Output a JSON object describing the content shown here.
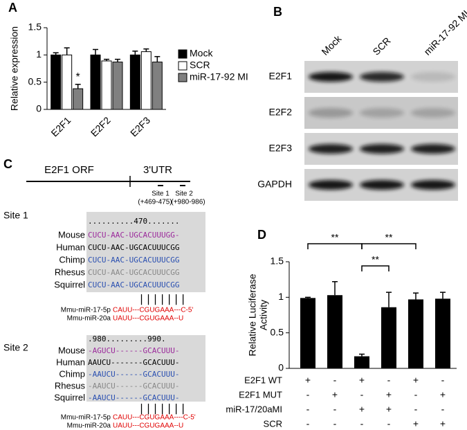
{
  "panel_labels": [
    "A",
    "B",
    "C",
    "D"
  ],
  "chart_data": [
    {
      "type": "bar",
      "ylabel": "Relative expression",
      "categories": [
        "E2F1",
        "E2F2",
        "E2F3"
      ],
      "series": [
        {
          "name": "Mock",
          "color": "#000000",
          "values": [
            1.0,
            1.0,
            1.0
          ],
          "errors": [
            0.04,
            0.1,
            0.07
          ]
        },
        {
          "name": "SCR",
          "color": "#ffffff",
          "values": [
            1.0,
            0.89,
            1.06
          ],
          "errors": [
            0.13,
            0.03,
            0.05
          ]
        },
        {
          "name": "miR-17-92 MI",
          "color": "#808080",
          "values": [
            0.38,
            0.87,
            0.87
          ],
          "errors": [
            0.08,
            0.05,
            0.1
          ]
        }
      ],
      "annotations": [
        "*"
      ],
      "ylim": [
        0,
        1.5
      ],
      "yticks": [
        0,
        0.5,
        1,
        1.5
      ]
    },
    {
      "type": "bar",
      "ylabel": [
        "Relative Luciferase",
        "Activity"
      ],
      "values": [
        0.99,
        1.03,
        0.17,
        0.86,
        0.97,
        0.98
      ],
      "errors": [
        0.01,
        0.19,
        0.03,
        0.21,
        0.09,
        0.09
      ],
      "color": "#000000",
      "annotations": [
        "**",
        "**",
        "**"
      ],
      "conditions": [
        {
          "name": "E2F1 WT",
          "marks": [
            "+",
            "-",
            "+",
            "-",
            "+",
            "-"
          ]
        },
        {
          "name": "E2F1 MUT",
          "marks": [
            "-",
            "+",
            "-",
            "+",
            "-",
            "+"
          ]
        },
        {
          "name": "miR-17/20aMI",
          "marks": [
            "-",
            "-",
            "+",
            "+",
            "-",
            "-"
          ]
        },
        {
          "name": "SCR",
          "marks": [
            "-",
            "-",
            "-",
            "-",
            "+",
            "+"
          ]
        }
      ],
      "ylim": [
        0,
        1.5
      ],
      "yticks": [
        0,
        0.5,
        1,
        1.5
      ]
    }
  ],
  "blot": {
    "lanes": [
      "Mock",
      "SCR",
      "miR-17-92 MI"
    ],
    "rows": [
      "E2F1",
      "E2F2",
      "E2F3",
      "GAPDH"
    ]
  },
  "gene_map": {
    "orf": "E2F1 ORF",
    "utr": "3'UTR",
    "sites": [
      {
        "name": "Site 1",
        "range": "(+469-475)"
      },
      {
        "name": "Site 2",
        "range": "(+980-986)"
      }
    ]
  },
  "alignments": [
    {
      "title": "Site 1",
      "ruler": "..........470.......",
      "rows": [
        {
          "species": "Mouse",
          "seq": "CUCU-AAC-UGCACUUUGG-",
          "color": "#9b2a9b"
        },
        {
          "species": "Human",
          "seq": "CUCU-AAC-UGCACUUUCGG",
          "color": "#000000"
        },
        {
          "species": "Chimp",
          "seq": "CUCU-AAC-UGCACUUUCGG",
          "color": "#2a4fb0"
        },
        {
          "species": "Rhesus",
          "seq": "CUCU-AAC-UGCACUUUCGG",
          "color": "#888888"
        },
        {
          "species": "Squirrel",
          "seq": "CUCU-AAC-UGCACUUUCGG",
          "color": "#2a4fb0"
        }
      ],
      "pairing": "|||||||",
      "mirnas": [
        {
          "name": "Mmu-miR-17-5p",
          "seq": "CAUU---CGUGAAA---C-5'"
        },
        {
          "name": "Mmu-miR-20a",
          "seq": "UAUU---CGUGAAA--U"
        }
      ]
    },
    {
      "title": "Site 2",
      "ruler": ".980.........990.",
      "rows": [
        {
          "species": "Mouse",
          "seq": "-AGUCU------GCACUUU-",
          "color": "#9b2a9b"
        },
        {
          "species": "Human",
          "seq": "AAUCU-------GCACUUU-",
          "color": "#000000"
        },
        {
          "species": "Chimp",
          "seq": "-AAUCU------GCACUUU-",
          "color": "#2a4fb0"
        },
        {
          "species": "Rhesus",
          "seq": "-AAUCU------GCACUUU-",
          "color": "#888888"
        },
        {
          "species": "Squirrel",
          "seq": "-AAUCU------GCACUUU-",
          "color": "#2a4fb0"
        }
      ],
      "pairing": "|||||||",
      "mirnas": [
        {
          "name": "Mmu-miR-17-5p",
          "seq": "CAUU---CGUGAAA----C-5'"
        },
        {
          "name": "Mmu-miR-20a",
          "seq": "UAUU---CGUGAAA--U"
        }
      ]
    }
  ]
}
